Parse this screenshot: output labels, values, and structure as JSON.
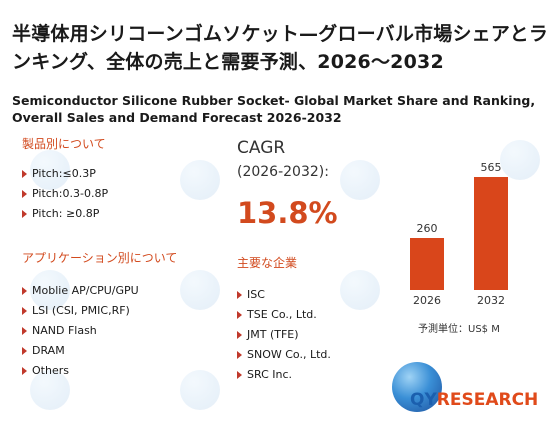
{
  "title_jp": "半導体用シリコーンゴムソケット—グローバル市場シェアとランキング、全体の売上と需要予測、2026〜2032",
  "title_en": "Semiconductor Silicone Rubber Socket- Global Market Share and Ranking, Overall Sales and Demand Forecast 2026-2032",
  "by_product": {
    "heading": "製品別について",
    "items": [
      "Pitch:≤0.3P",
      "Pitch:0.3-0.8P",
      "Pitch: ≥0.8P"
    ]
  },
  "by_application": {
    "heading": "アプリケーション別について",
    "items": [
      "Moblie AP/CPU/GPU",
      "LSI (CSI, PMIC,RF)",
      "NAND Flash",
      "DRAM",
      "Others"
    ]
  },
  "cagr": {
    "label": "CAGR",
    "period": "(2026-2032):",
    "value": "13.8%"
  },
  "companies": {
    "heading": "主要な企業",
    "items": [
      "ISC",
      "TSE Co., Ltd.",
      "JMT (TFE)",
      "SNOW Co., Ltd.",
      "SRC Inc."
    ]
  },
  "chart_data": {
    "type": "bar",
    "categories": [
      "2026",
      "2032"
    ],
    "values": [
      260,
      565
    ],
    "ylim": [
      0,
      600
    ],
    "unit_label": "予測単位：US$ M",
    "bar_color": "#d9461b"
  },
  "logo": {
    "q": "QY",
    "r": "RESEARCH"
  }
}
